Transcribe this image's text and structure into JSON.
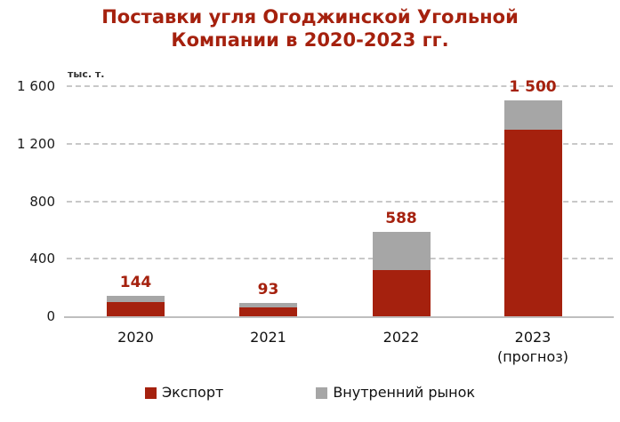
{
  "title": {
    "text": "Поставки угля Огоджинской Угольной Компании в 2020-2023 гг.",
    "color": "#A5210E"
  },
  "colors": {
    "export_red": "#A5210E",
    "domestic_gray": "#A6A6A6",
    "gridline": "#C8C8C8",
    "baseline": "#BEBEBE",
    "tick_text": "#1A1A1A"
  },
  "chart_data": {
    "type": "bar",
    "stacked": true,
    "unit_label": "тыс. т.",
    "categories": [
      "2020",
      "2021",
      "2022",
      "2023\n(прогноз)"
    ],
    "series": [
      {
        "name": "Экспорт",
        "color": "#A5210E",
        "values": [
          100,
          60,
          320,
          1300
        ]
      },
      {
        "name": "Внутренний рынок",
        "color": "#A6A6A6",
        "values": [
          44,
          33,
          268,
          200
        ]
      }
    ],
    "totals": [
      144,
      93,
      588,
      1500
    ],
    "total_labels": [
      "144",
      "93",
      "588",
      "1 500"
    ],
    "total_label_color": "#A5210E",
    "ylim": [
      0,
      1600
    ],
    "yticks": [
      0,
      400,
      800,
      1200,
      1600
    ],
    "ytick_labels": [
      "0",
      "400",
      "800",
      "1 200",
      "1 600"
    ],
    "grid": "horizontal-dashed",
    "legend_position": "bottom"
  },
  "legend": {
    "items": [
      {
        "label": "Экспорт",
        "color": "#A5210E"
      },
      {
        "label": "Внутренний рынок",
        "color": "#A6A6A6"
      }
    ]
  }
}
